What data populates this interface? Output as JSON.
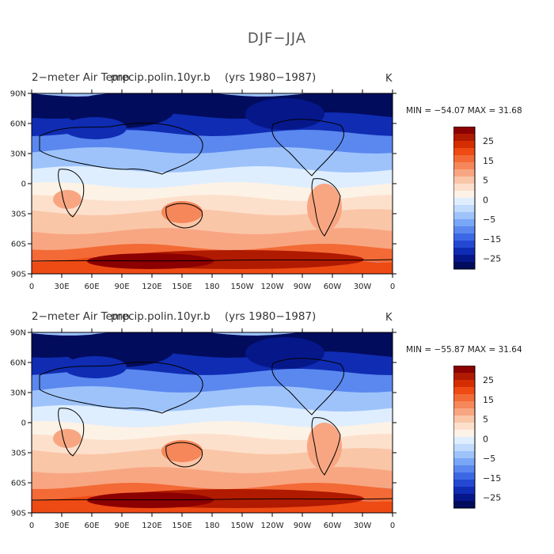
{
  "page": {
    "title": "DJF−JJA"
  },
  "panels": [
    {
      "title_main": "2−meter Air Temp",
      "title_overlap": "precip.polin.10yr.b",
      "title_years": "(yrs 1980−1987)",
      "units": "K",
      "min_label": "MIN = −54.07",
      "max_label": "MAX =  31.68"
    },
    {
      "title_main": "2−meter Air Temp",
      "title_overlap": "precip.polin.10yr.b",
      "title_years": "(yrs 1980−1987)",
      "units": "K",
      "min_label": "MIN = −55.87",
      "max_label": "MAX =  31.64"
    }
  ],
  "axes": {
    "lat_ticks": [
      "90N",
      "60N",
      "30N",
      "0",
      "30S",
      "60S",
      "90S"
    ],
    "lon_ticks": [
      "0",
      "30E",
      "60E",
      "90E",
      "120E",
      "150E",
      "180",
      "150W",
      "120W",
      "90W",
      "60W",
      "30W",
      "0"
    ]
  },
  "colorbar": {
    "labels": [
      "25",
      "15",
      "5",
      "0",
      "−5",
      "−15",
      "−25"
    ],
    "colors": [
      "#8b0000",
      "#b01a00",
      "#d42e00",
      "#ee4a14",
      "#f36a36",
      "#f5875a",
      "#f8a682",
      "#fac6a8",
      "#fde0cc",
      "#fdf2e6",
      "#dfeeff",
      "#c1dafd",
      "#9ec3fb",
      "#79a6f6",
      "#5a88ef",
      "#3d68e5",
      "#2448d2",
      "#0f2cb3",
      "#06178a",
      "#020c5c"
    ]
  }
}
